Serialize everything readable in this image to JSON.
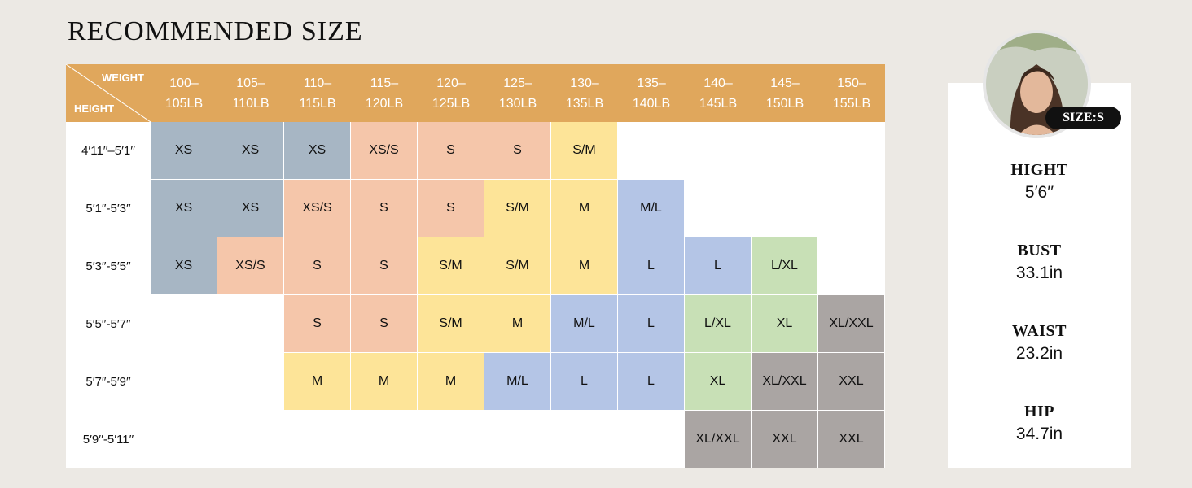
{
  "title": "RECOMMENDED SIZE",
  "corner": {
    "weight": "WEIGHT",
    "height": "HEIGHT"
  },
  "weights": [
    [
      "100–",
      "105LB"
    ],
    [
      "105–",
      "110LB"
    ],
    [
      "110–",
      "115LB"
    ],
    [
      "115–",
      "120LB"
    ],
    [
      "120–",
      "125LB"
    ],
    [
      "125–",
      "130LB"
    ],
    [
      "130–",
      "135LB"
    ],
    [
      "135–",
      "140LB"
    ],
    [
      "140–",
      "145LB"
    ],
    [
      "145–",
      "150LB"
    ],
    [
      "150–",
      "155LB"
    ]
  ],
  "rows": [
    {
      "height": "4′11′′–5′1′′",
      "cells": [
        "XS",
        "XS",
        "XS",
        "XS/S",
        "S",
        "S",
        "S/M",
        "",
        "",
        "",
        ""
      ]
    },
    {
      "height": "5′1′′-5′3′′",
      "cells": [
        "XS",
        "XS",
        "XS/S",
        "S",
        "S",
        "S/M",
        "M",
        "M/L",
        "",
        "",
        ""
      ]
    },
    {
      "height": "5′3′′-5′5′′",
      "cells": [
        "XS",
        "XS/S",
        "S",
        "S",
        "S/M",
        "S/M",
        "M",
        "L",
        "L",
        "L/XL",
        ""
      ]
    },
    {
      "height": "5′5′′-5′7′′",
      "cells": [
        "",
        "",
        "S",
        "S",
        "S/M",
        "M",
        "M/L",
        "L",
        "L/XL",
        "XL",
        "XL/XXL"
      ]
    },
    {
      "height": "5′7′′-5′9′′",
      "cells": [
        "",
        "",
        "M",
        "M",
        "M",
        "M/L",
        "L",
        "L",
        "XL",
        "XL/XXL",
        "XXL"
      ]
    },
    {
      "height": "5′9′′-5′11′′",
      "cells": [
        "",
        "",
        "",
        "",
        "",
        "",
        "",
        "",
        "XL/XXL",
        "XXL",
        "XXL"
      ]
    }
  ],
  "size_colors": {
    "XS": "#a7b6c4",
    "XS/S": "#f5c6aa",
    "S": "#f5c6aa",
    "S/M": "#fde498",
    "M": "#fde498",
    "M/L": "#b4c5e6",
    "L": "#b4c5e6",
    "L/XL": "#c8e0b6",
    "XL": "#c8e0b6",
    "XL/XXL": "#aaa5a3",
    "XXL": "#aaa5a3"
  },
  "model": {
    "badge": "SIZE:S",
    "measurements": [
      {
        "label": "HIGHT",
        "value": "5′6′′"
      },
      {
        "label": "BUST",
        "value": "33.1in"
      },
      {
        "label": "WAIST",
        "value": "23.2in"
      },
      {
        "label": "HIP",
        "value": "34.7in"
      }
    ]
  },
  "colors": {
    "header": "#e0a75c",
    "background": "#ece9e4"
  }
}
